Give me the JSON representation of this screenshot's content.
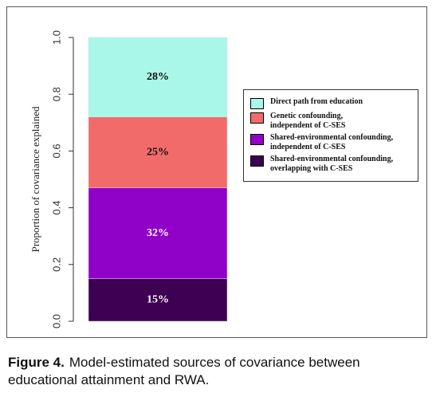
{
  "chart_data": {
    "type": "bar",
    "stacked": true,
    "y_label": "Proportion of covariance explained",
    "categories": [
      null
    ],
    "series": [
      {
        "name": "Shared-environmental confounding,\noverlapping with C-SES",
        "color": "#3d0052",
        "values": [
          0.15
        ],
        "value_labels": [
          "15%"
        ]
      },
      {
        "name": "Shared-environmental confounding,\nindependent of C-SES",
        "color": "#9102c9",
        "values": [
          0.32
        ],
        "value_labels": [
          "32%"
        ]
      },
      {
        "name": "Genetic confounding,\nindependent of C-SES",
        "color": "#f26b6b",
        "values": [
          0.25
        ],
        "value_labels": [
          "25%"
        ]
      },
      {
        "name": "Direct path from education",
        "color": "#a9f7e8",
        "values": [
          0.28
        ],
        "value_labels": [
          "28%"
        ]
      }
    ],
    "ylim": [
      0,
      1
    ],
    "yticks": [
      {
        "value": 0,
        "label": "0.0"
      },
      0.2,
      0.4,
      0.6,
      0.8,
      {
        "value": 1,
        "label": "1.0"
      }
    ]
  },
  "caption": {
    "label": "Figure 4.",
    "text": "Model-estimated sources of covariance between educational attainment and RWA."
  }
}
